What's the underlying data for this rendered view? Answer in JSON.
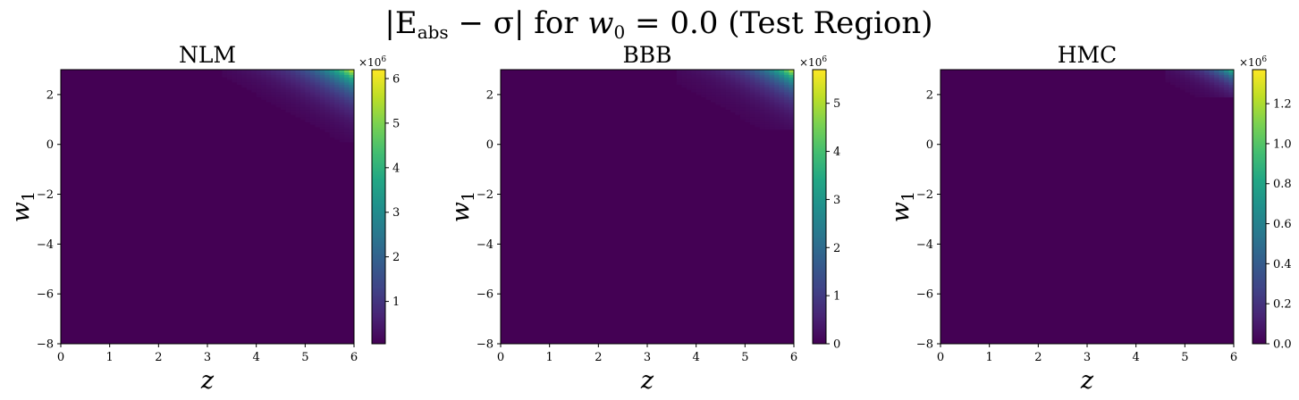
{
  "chart_data": {
    "suptitle": "|Eabs − σ| for w0 = 0.0 (Test Region)",
    "suptitle_parts": {
      "open_bar": "|E",
      "sub_abs": "abs",
      "mid": " − σ| for ",
      "w": "w",
      "sub_0": "0",
      "rest": " = 0.0 (Test Region)"
    },
    "type": "heatmap",
    "colormap": "viridis",
    "panels": [
      {
        "id": "nlm",
        "title": "NLM",
        "xlabel": "z",
        "ylabel": "w",
        "ylabel_sub": "1",
        "xlim": [
          0,
          6
        ],
        "ylim": [
          -8,
          3
        ],
        "xticks": [
          0,
          1,
          2,
          3,
          4,
          5,
          6
        ],
        "xtick_labels": [
          "0",
          "1",
          "2",
          "3",
          "4",
          "5",
          "6"
        ],
        "yticks": [
          2,
          0,
          -2,
          -4,
          -6,
          -8
        ],
        "ytick_labels": [
          "2",
          "0",
          "−2",
          "−4",
          "−6",
          "−8"
        ],
        "colorbar": {
          "min": 0.05,
          "max": 6.2,
          "ticks": [
            1,
            2,
            3,
            4,
            5,
            6
          ],
          "tick_labels": [
            "1",
            "2",
            "3",
            "4",
            "5",
            "6"
          ],
          "exponent_base": "×10",
          "exponent": "6"
        },
        "hotspot": {
          "peak": 6.2,
          "z_start": 3.3,
          "w_start": 0.1,
          "z_scale": 0.75,
          "w_scale": 0.8
        }
      },
      {
        "id": "bbb",
        "title": "BBB",
        "xlabel": "z",
        "ylabel": "w",
        "ylabel_sub": "1",
        "xlim": [
          0,
          6
        ],
        "ylim": [
          -8,
          3
        ],
        "xticks": [
          0,
          1,
          2,
          3,
          4,
          5,
          6
        ],
        "xtick_labels": [
          "0",
          "1",
          "2",
          "3",
          "4",
          "5",
          "6"
        ],
        "yticks": [
          2,
          0,
          -2,
          -4,
          -6,
          -8
        ],
        "ytick_labels": [
          "2",
          "0",
          "−2",
          "−4",
          "−6",
          "−8"
        ],
        "colorbar": {
          "min": 0,
          "max": 5.7,
          "ticks": [
            0,
            1,
            2,
            3,
            4,
            5
          ],
          "tick_labels": [
            "0",
            "1",
            "2",
            "3",
            "4",
            "5"
          ],
          "exponent_base": "×10",
          "exponent": "6"
        },
        "hotspot": {
          "peak": 5.6,
          "z_start": 3.6,
          "w_start": 0.6,
          "z_scale": 0.65,
          "w_scale": 0.7
        }
      },
      {
        "id": "hmc",
        "title": "HMC",
        "xlabel": "z",
        "ylabel": "w",
        "ylabel_sub": "1",
        "xlim": [
          0,
          6
        ],
        "ylim": [
          -8,
          3
        ],
        "xticks": [
          0,
          1,
          2,
          3,
          4,
          5,
          6
        ],
        "xtick_labels": [
          "0",
          "1",
          "2",
          "3",
          "4",
          "5",
          "6"
        ],
        "yticks": [
          2,
          0,
          -2,
          -4,
          -6,
          -8
        ],
        "ytick_labels": [
          "2",
          "0",
          "−2",
          "−4",
          "−6",
          "−8"
        ],
        "colorbar": {
          "min": 0,
          "max": 1.37,
          "ticks": [
            0,
            0.2,
            0.4,
            0.6,
            0.8,
            1.0,
            1.2
          ],
          "tick_labels": [
            "0.0",
            "0.2",
            "0.4",
            "0.6",
            "0.8",
            "1.0",
            "1.2"
          ],
          "exponent_base": "×10",
          "exponent": "6"
        },
        "hotspot": {
          "peak": 1.0,
          "z_start": 4.6,
          "w_start": 1.9,
          "z_scale": 0.45,
          "w_scale": 0.45
        }
      }
    ]
  }
}
